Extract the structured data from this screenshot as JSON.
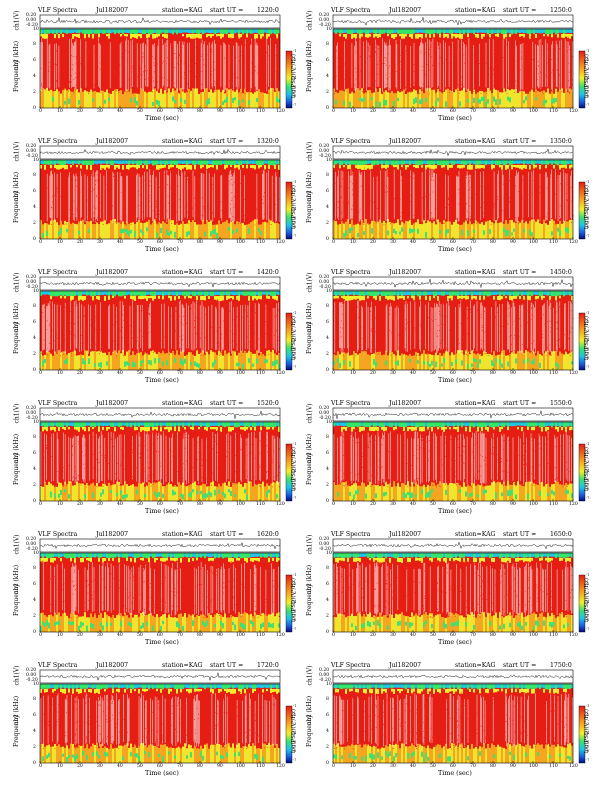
{
  "header": {
    "title": "VLF Spectra",
    "station": "station=KAG",
    "start_prefix": "start  UT  ="
  },
  "axes": {
    "voltage_label": "ch1(V)",
    "channel_label": "ch1",
    "frequency_label": "Frequency  (kHz)",
    "time_label": "Time  (sec)",
    "colorbar_label": "log(PSD)(V²/Hz)",
    "voltage_ticks": [
      "0.20",
      "0.00",
      "-0.20"
    ],
    "freq_ticks": [
      "0",
      "2",
      "4",
      "6",
      "8",
      "10"
    ],
    "time_ticks": [
      "0",
      "10",
      "20",
      "30",
      "40",
      "50",
      "60",
      "70",
      "80",
      "90",
      "100",
      "110",
      "120"
    ],
    "colorbar_ticks": [
      "-1",
      "-2",
      "-3",
      "-4",
      "-5",
      "-6",
      "-7"
    ]
  },
  "chart_data": [
    {
      "type": "heatmap",
      "date": "Jul182007",
      "start_ut": "1220:0",
      "freq_range": [
        0,
        10
      ],
      "time_range": [
        0,
        120
      ]
    },
    {
      "type": "heatmap",
      "date": "Jul182007",
      "start_ut": "1250:0",
      "freq_range": [
        0,
        10
      ],
      "time_range": [
        0,
        120
      ]
    },
    {
      "type": "heatmap",
      "date": "Jul182007",
      "start_ut": "1320:0",
      "freq_range": [
        0,
        10
      ],
      "time_range": [
        0,
        120
      ]
    },
    {
      "type": "heatmap",
      "date": "Jul182007",
      "start_ut": "1350:0",
      "freq_range": [
        0,
        10
      ],
      "time_range": [
        0,
        120
      ]
    },
    {
      "type": "heatmap",
      "date": "Jul182007",
      "start_ut": "1420:0",
      "freq_range": [
        0,
        10
      ],
      "time_range": [
        0,
        120
      ]
    },
    {
      "type": "heatmap",
      "date": "Jul182007",
      "start_ut": "1450:0",
      "freq_range": [
        0,
        10
      ],
      "time_range": [
        0,
        120
      ]
    },
    {
      "type": "heatmap",
      "date": "Jul182007",
      "start_ut": "1520:0",
      "freq_range": [
        0,
        10
      ],
      "time_range": [
        0,
        120
      ]
    },
    {
      "type": "heatmap",
      "date": "Jul182007",
      "start_ut": "1550:0",
      "freq_range": [
        0,
        10
      ],
      "time_range": [
        0,
        120
      ]
    },
    {
      "type": "heatmap",
      "date": "Jul182007",
      "start_ut": "1620:0",
      "freq_range": [
        0,
        10
      ],
      "time_range": [
        0,
        120
      ]
    },
    {
      "type": "heatmap",
      "date": "Jul182007",
      "start_ut": "1650:0",
      "freq_range": [
        0,
        10
      ],
      "time_range": [
        0,
        120
      ]
    },
    {
      "type": "heatmap",
      "date": "Jul182007",
      "start_ut": "1720:0",
      "freq_range": [
        0,
        10
      ],
      "time_range": [
        0,
        120
      ]
    },
    {
      "type": "heatmap",
      "date": "Jul182007",
      "start_ut": "1750:0",
      "freq_range": [
        0,
        10
      ],
      "time_range": [
        0,
        120
      ]
    }
  ]
}
